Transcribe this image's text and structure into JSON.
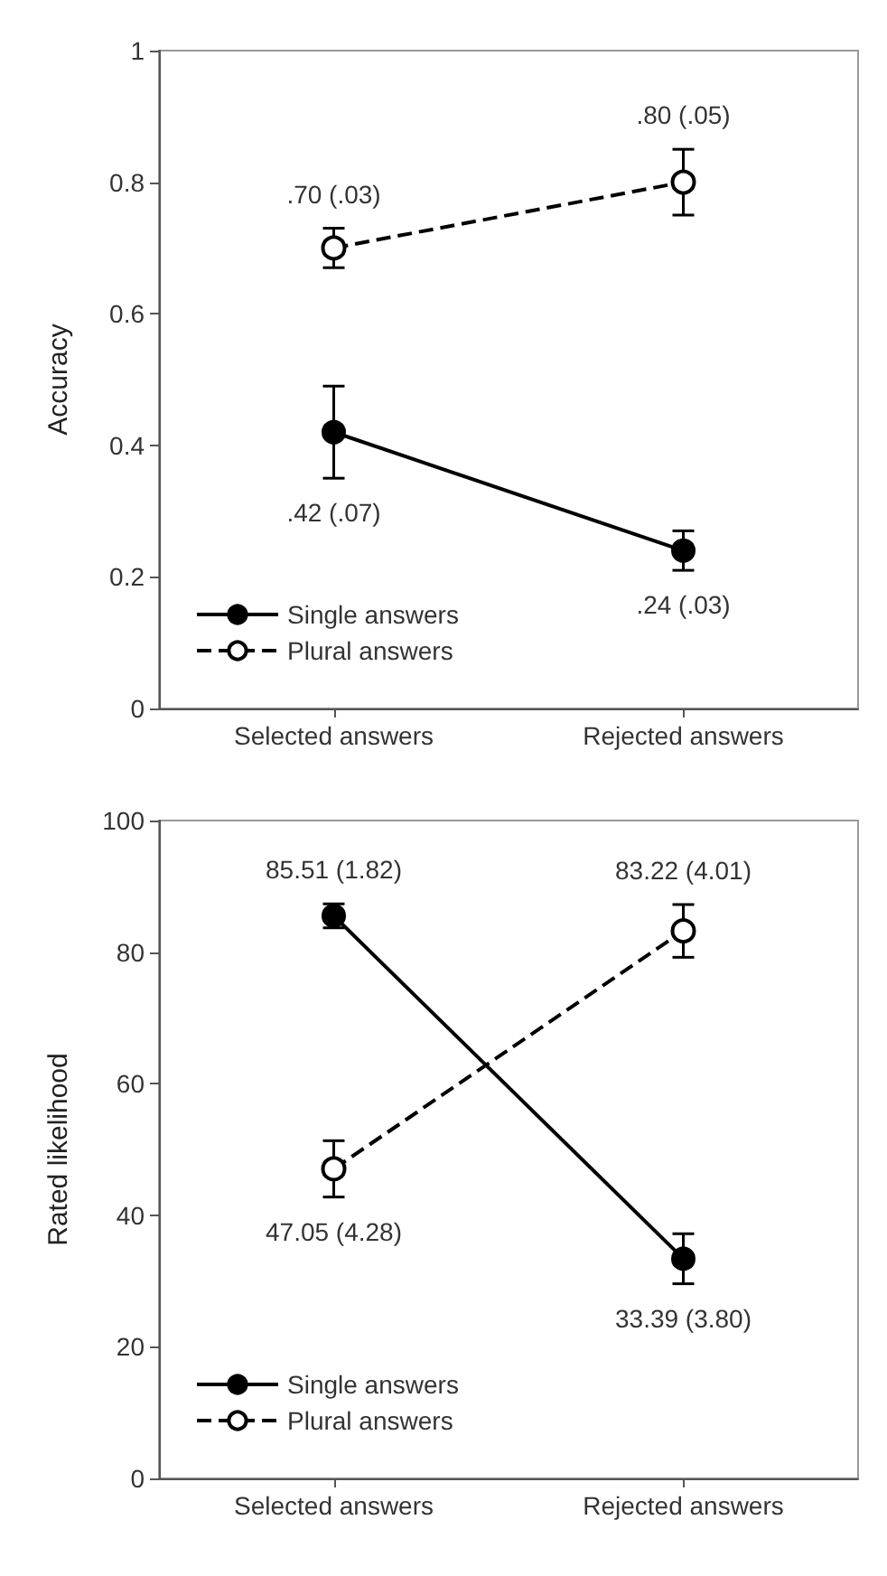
{
  "chart_data": [
    {
      "type": "line",
      "ylabel": "Accuracy",
      "categories": [
        "Selected answers",
        "Rejected answers"
      ],
      "ylim": [
        0,
        1
      ],
      "yticks": [
        0,
        0.2,
        0.4,
        0.6,
        0.8,
        1
      ],
      "grid": false,
      "legend": "bottom left",
      "series": [
        {
          "name": "Single answers",
          "color": "#000000",
          "line_style": "solid",
          "marker": "circle",
          "values": [
            0.42,
            0.24
          ],
          "errors": [
            0.07,
            0.03
          ],
          "value_labels": [
            ".42 (.07)",
            ".24 (.03)"
          ]
        },
        {
          "name": "Plural answers",
          "color": "#000000",
          "line_style": "dashed",
          "marker": "circle_open",
          "values": [
            0.7,
            0.8
          ],
          "errors": [
            0.03,
            0.05
          ],
          "value_labels": [
            ".70 (.03)",
            ".80 (.05)"
          ]
        }
      ]
    },
    {
      "type": "line",
      "ylabel": "Rated likelihood",
      "categories": [
        "Selected answers",
        "Rejected answers"
      ],
      "ylim": [
        0,
        100
      ],
      "yticks": [
        0,
        20,
        40,
        60,
        80,
        100
      ],
      "grid": false,
      "legend": "bottom left",
      "series": [
        {
          "name": "Single answers",
          "color": "#000000",
          "line_style": "solid",
          "marker": "circle",
          "values": [
            85.51,
            33.39
          ],
          "errors": [
            1.82,
            3.8
          ],
          "value_labels": [
            "85.51 (1.82)",
            "33.39 (3.80)"
          ]
        },
        {
          "name": "Plural answers",
          "color": "#000000",
          "line_style": "dashed",
          "marker": "circle_open",
          "values": [
            47.05,
            83.22
          ],
          "errors": [
            4.28,
            4.01
          ],
          "value_labels": [
            "47.05 (4.28)",
            "83.22 (4.01)"
          ]
        }
      ]
    }
  ]
}
